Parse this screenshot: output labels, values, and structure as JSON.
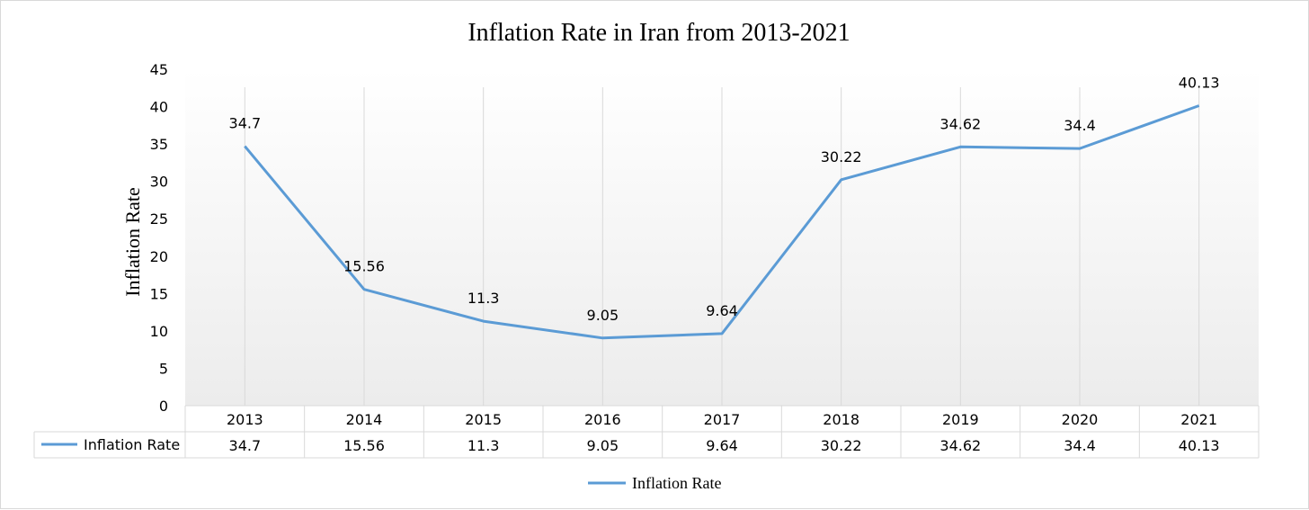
{
  "chart_data": {
    "type": "line",
    "title": "Inflation Rate in Iran from 2013-2021",
    "ylabel": "Inflation Rate",
    "xlabel": "",
    "categories": [
      "2013",
      "2014",
      "2015",
      "2016",
      "2017",
      "2018",
      "2019",
      "2020",
      "2021"
    ],
    "series": [
      {
        "name": "Inflation Rate",
        "values": [
          34.7,
          15.56,
          11.3,
          9.05,
          9.64,
          30.22,
          34.62,
          34.4,
          40.13
        ],
        "value_labels": [
          "34.7",
          "15.56",
          "11.3",
          "9.05",
          "9.64",
          "30.22",
          "34.62",
          "34.4",
          "40.13"
        ],
        "color": "#5b9bd5"
      }
    ],
    "ylim": [
      0,
      45
    ],
    "yticks": [
      "0",
      "5",
      "10",
      "15",
      "20",
      "25",
      "30",
      "35",
      "40",
      "45"
    ],
    "grid": "vertical",
    "legend": "bottom",
    "data_table": true
  }
}
